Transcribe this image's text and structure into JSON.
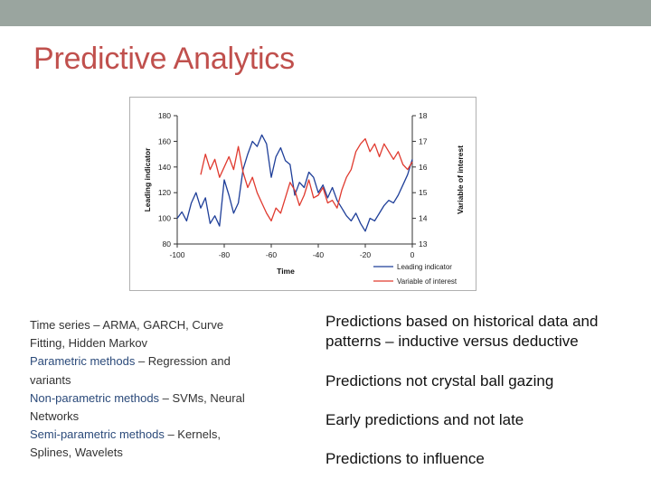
{
  "slide": {
    "title": "Predictive Analytics",
    "accent_bar_color": "#9aa59f",
    "title_color": "#c0504d"
  },
  "left_list": {
    "line1": "Time series – ARMA, GARCH, Curve",
    "line2": "Fitting, Hidden Markov",
    "line3_key": "Parametric methods",
    "line3_rest": " – Regression and",
    "line4": "variants",
    "line5_key": "Non-parametric methods",
    "line5_rest": " – SVMs, Neural",
    "line6": "Networks",
    "line7_key": "Semi-parametric methods",
    "line7_rest": " – Kernels,",
    "line8": "Splines, Wavelets"
  },
  "right_list": {
    "item1_line1": "Predictions based on historical data and",
    "item1_line2": "patterns – inductive versus deductive",
    "item2": "Predictions not crystal ball gazing",
    "item3": "Early predictions and not late",
    "item4": "Predictions to influence"
  },
  "chart_data": {
    "type": "line",
    "title": "",
    "xlabel": "Time",
    "ylabel": "Leading indicator",
    "y2label": "Variable of interest",
    "xlim": [
      -100,
      0
    ],
    "ylim": [
      80,
      180
    ],
    "y2lim": [
      13,
      18
    ],
    "x_ticks": [
      "-100",
      "-80",
      "-60",
      "-40",
      "-20",
      "0"
    ],
    "y_ticks": [
      "180",
      "160",
      "140",
      "120",
      "100",
      "80"
    ],
    "y2_ticks": [
      "18",
      "17",
      "16",
      "15",
      "14",
      "13"
    ],
    "legend_position": "bottom-right",
    "series": [
      {
        "name": "Leading indicator",
        "axis": "left",
        "color": "#1f3f99",
        "x": [
          -100,
          -98,
          -96,
          -94,
          -92,
          -90,
          -88,
          -86,
          -84,
          -82,
          -80,
          -78,
          -76,
          -74,
          -72,
          -70,
          -68,
          -66,
          -64,
          -62,
          -60,
          -58,
          -56,
          -54,
          -52,
          -50,
          -48,
          -46,
          -44,
          -42,
          -40,
          -38,
          -36,
          -34,
          -32,
          -30,
          -28,
          -26,
          -24,
          -22,
          -20,
          -18,
          -16,
          -14,
          -12,
          -10,
          -8,
          -6,
          -4,
          -2,
          0
        ],
        "values": [
          100,
          105,
          98,
          112,
          120,
          108,
          116,
          96,
          102,
          94,
          130,
          118,
          104,
          112,
          138,
          150,
          160,
          156,
          165,
          158,
          132,
          148,
          155,
          145,
          142,
          118,
          128,
          124,
          136,
          132,
          120,
          126,
          116,
          124,
          114,
          108,
          102,
          98,
          104,
          96,
          90,
          100,
          98,
          104,
          110,
          114,
          112,
          118,
          126,
          134,
          146
        ]
      },
      {
        "name": "Variable of interest",
        "axis": "right",
        "color": "#e03a2f",
        "x": [
          -90,
          -88,
          -86,
          -84,
          -82,
          -80,
          -78,
          -76,
          -74,
          -72,
          -70,
          -68,
          -66,
          -64,
          -62,
          -60,
          -58,
          -56,
          -54,
          -52,
          -50,
          -48,
          -46,
          -44,
          -42,
          -40,
          -38,
          -36,
          -34,
          -32,
          -30,
          -28,
          -26,
          -24,
          -22,
          -20,
          -18,
          -16,
          -14,
          -12,
          -10,
          -8,
          -6,
          -4,
          -2,
          0
        ],
        "values": [
          15.7,
          16.5,
          15.9,
          16.3,
          15.6,
          16.0,
          16.4,
          15.9,
          16.8,
          15.8,
          15.2,
          15.6,
          15.0,
          14.6,
          14.2,
          13.9,
          14.4,
          14.2,
          14.8,
          15.4,
          15.1,
          14.5,
          14.9,
          15.5,
          14.8,
          14.9,
          15.2,
          14.6,
          14.7,
          14.4,
          15.1,
          15.6,
          15.9,
          16.6,
          16.9,
          17.1,
          16.6,
          16.9,
          16.4,
          16.9,
          16.6,
          16.3,
          16.6,
          16.1,
          15.9,
          16.2
        ]
      }
    ]
  }
}
